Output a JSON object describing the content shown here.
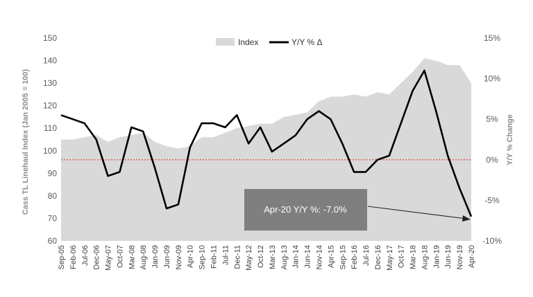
{
  "chart_data": {
    "type": "area+line",
    "left_axis_label": "Cass TL Linehaul Index (Jan 2005 = 100)",
    "right_axis_label": "Y/Y % Change",
    "left_ylim": [
      60,
      150
    ],
    "left_ticks": [
      "60",
      "70",
      "80",
      "90",
      "100",
      "110",
      "120",
      "130",
      "140",
      "150"
    ],
    "right_ylim": [
      -10,
      15
    ],
    "right_ticks": [
      "-10%",
      "-5%",
      "0%",
      "5%",
      "10%",
      "15%"
    ],
    "x_tick_labels": [
      "Sep-05",
      "Feb-06",
      "Jul-06",
      "Dec-06",
      "May-07",
      "Oct-07",
      "Mar-08",
      "Aug-08",
      "Jan-09",
      "Jun-09",
      "Nov-09",
      "Apr-10",
      "Sep-10",
      "Feb-11",
      "Jul-11",
      "Dec-11",
      "May-12",
      "Oct-12",
      "Mar-13",
      "Aug-13",
      "Jan-14",
      "Jun-14",
      "Nov-14",
      "Apr-15",
      "Sep-15",
      "Feb-16",
      "Jul-16",
      "Dec-16",
      "May-17",
      "Oct-17",
      "Mar-18",
      "Aug-18",
      "Jan-19",
      "Jun-19",
      "Nov-19",
      "Apr-20"
    ],
    "legend": [
      {
        "name": "Index",
        "color": "#d9d9d9"
      },
      {
        "name": "Y/Y % Δ",
        "color": "#000000"
      }
    ],
    "annotation": "Apr-20 Y/Y %: -7.0%",
    "reference_line": {
      "axis": "right",
      "value": 0,
      "color": "#e03c31",
      "style": "dotted"
    },
    "series": [
      {
        "name": "Index",
        "axis": "left",
        "x": [
          "Sep-05",
          "Feb-06",
          "Jul-06",
          "Dec-06",
          "May-07",
          "Oct-07",
          "Mar-08",
          "Aug-08",
          "Jan-09",
          "Jun-09",
          "Nov-09",
          "Apr-10",
          "Sep-10",
          "Feb-11",
          "Jul-11",
          "Dec-11",
          "May-12",
          "Oct-12",
          "Mar-13",
          "Aug-13",
          "Jan-14",
          "Jun-14",
          "Nov-14",
          "Apr-15",
          "Sep-15",
          "Feb-16",
          "Jul-16",
          "Dec-16",
          "May-17",
          "Oct-17",
          "Mar-18",
          "Aug-18",
          "Jan-19",
          "Jun-19",
          "Nov-19",
          "Apr-20"
        ],
        "values": [
          105,
          105,
          106,
          107,
          104,
          106,
          107,
          108,
          104,
          102,
          101,
          102,
          106,
          106,
          108,
          110,
          111,
          112,
          112,
          115,
          116,
          117,
          122,
          124,
          124,
          125,
          124,
          126,
          125,
          130,
          135,
          141,
          140,
          138,
          138,
          130
        ]
      },
      {
        "name": "Y/Y % Δ",
        "axis": "right",
        "x": [
          "Sep-05",
          "Feb-06",
          "Jul-06",
          "Dec-06",
          "May-07",
          "Oct-07",
          "Mar-08",
          "Aug-08",
          "Jan-09",
          "Jun-09",
          "Nov-09",
          "Apr-10",
          "Sep-10",
          "Feb-11",
          "Jul-11",
          "Dec-11",
          "May-12",
          "Oct-12",
          "Mar-13",
          "Aug-13",
          "Jan-14",
          "Jun-14",
          "Nov-14",
          "Apr-15",
          "Sep-15",
          "Feb-16",
          "Jul-16",
          "Dec-16",
          "May-17",
          "Oct-17",
          "Mar-18",
          "Aug-18",
          "Jan-19",
          "Jun-19",
          "Nov-19",
          "Apr-20"
        ],
        "values": [
          5.5,
          5.0,
          4.5,
          2.5,
          -2.0,
          -1.5,
          4.0,
          3.5,
          -1.0,
          -6.0,
          -5.5,
          1.5,
          4.5,
          4.5,
          4.0,
          5.5,
          2.0,
          4.0,
          1.0,
          2.0,
          3.0,
          5.0,
          6.0,
          5.0,
          2.0,
          -1.5,
          -1.5,
          0.0,
          0.5,
          4.5,
          8.5,
          11.0,
          6.0,
          0.5,
          -3.5,
          -7.0
        ]
      }
    ]
  }
}
